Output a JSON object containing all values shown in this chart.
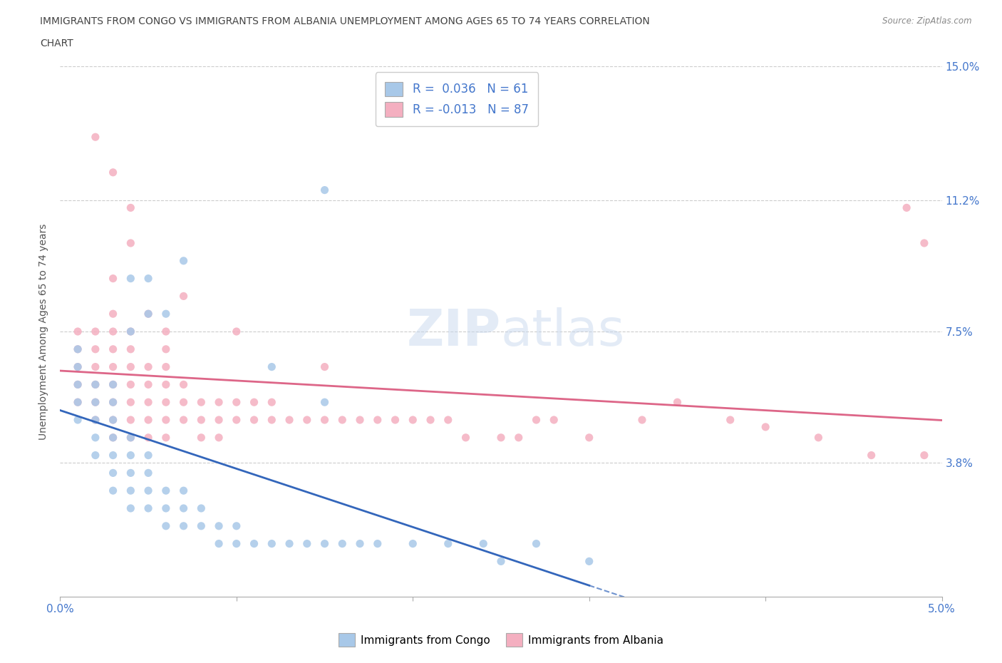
{
  "title_line1": "IMMIGRANTS FROM CONGO VS IMMIGRANTS FROM ALBANIA UNEMPLOYMENT AMONG AGES 65 TO 74 YEARS CORRELATION",
  "title_line2": "CHART",
  "source_text": "Source: ZipAtlas.com",
  "congo_R": 0.036,
  "congo_N": 61,
  "albania_R": -0.013,
  "albania_N": 87,
  "xlim": [
    0.0,
    0.05
  ],
  "ylim": [
    0.0,
    0.15
  ],
  "xtick_positions": [
    0.0,
    0.01,
    0.02,
    0.03,
    0.04,
    0.05
  ],
  "xtick_labels": [
    "0.0%",
    "",
    "",
    "",
    "",
    "5.0%"
  ],
  "ytick_values": [
    0.038,
    0.075,
    0.112,
    0.15
  ],
  "ytick_labels": [
    "3.8%",
    "7.5%",
    "11.2%",
    "15.0%"
  ],
  "ylabel": "Unemployment Among Ages 65 to 74 years",
  "congo_color": "#a8c8e8",
  "albania_color": "#f4afc0",
  "congo_line_color": "#3366bb",
  "albania_line_color": "#dd6688",
  "watermark_color": "#d0dff0",
  "congo_x": [
    0.001,
    0.001,
    0.001,
    0.001,
    0.001,
    0.002,
    0.002,
    0.002,
    0.002,
    0.002,
    0.003,
    0.003,
    0.003,
    0.003,
    0.003,
    0.003,
    0.003,
    0.004,
    0.004,
    0.004,
    0.004,
    0.004,
    0.004,
    0.005,
    0.005,
    0.005,
    0.005,
    0.005,
    0.005,
    0.006,
    0.006,
    0.006,
    0.007,
    0.007,
    0.007,
    0.008,
    0.008,
    0.009,
    0.009,
    0.01,
    0.01,
    0.011,
    0.012,
    0.013,
    0.014,
    0.015,
    0.016,
    0.017,
    0.018,
    0.02,
    0.022,
    0.024,
    0.025,
    0.027,
    0.03,
    0.012,
    0.015,
    0.007,
    0.004,
    0.006,
    0.015
  ],
  "congo_y": [
    0.05,
    0.055,
    0.06,
    0.065,
    0.07,
    0.04,
    0.045,
    0.05,
    0.055,
    0.06,
    0.03,
    0.035,
    0.04,
    0.045,
    0.05,
    0.055,
    0.06,
    0.025,
    0.03,
    0.035,
    0.04,
    0.045,
    0.075,
    0.025,
    0.03,
    0.035,
    0.04,
    0.08,
    0.09,
    0.02,
    0.025,
    0.03,
    0.02,
    0.025,
    0.03,
    0.02,
    0.025,
    0.015,
    0.02,
    0.015,
    0.02,
    0.015,
    0.015,
    0.015,
    0.015,
    0.015,
    0.015,
    0.015,
    0.015,
    0.015,
    0.015,
    0.015,
    0.01,
    0.015,
    0.01,
    0.065,
    0.055,
    0.095,
    0.09,
    0.08,
    0.115
  ],
  "albania_x": [
    0.001,
    0.001,
    0.001,
    0.001,
    0.001,
    0.002,
    0.002,
    0.002,
    0.002,
    0.002,
    0.002,
    0.003,
    0.003,
    0.003,
    0.003,
    0.003,
    0.003,
    0.003,
    0.003,
    0.004,
    0.004,
    0.004,
    0.004,
    0.004,
    0.004,
    0.004,
    0.005,
    0.005,
    0.005,
    0.005,
    0.005,
    0.006,
    0.006,
    0.006,
    0.006,
    0.006,
    0.006,
    0.007,
    0.007,
    0.007,
    0.008,
    0.008,
    0.008,
    0.009,
    0.009,
    0.009,
    0.01,
    0.01,
    0.011,
    0.011,
    0.012,
    0.012,
    0.013,
    0.014,
    0.015,
    0.016,
    0.017,
    0.018,
    0.019,
    0.02,
    0.021,
    0.022,
    0.023,
    0.025,
    0.026,
    0.027,
    0.028,
    0.03,
    0.033,
    0.035,
    0.038,
    0.04,
    0.043,
    0.046,
    0.049,
    0.003,
    0.004,
    0.005,
    0.006,
    0.007,
    0.002,
    0.003,
    0.004,
    0.01,
    0.015,
    0.048,
    0.049
  ],
  "albania_y": [
    0.06,
    0.055,
    0.065,
    0.07,
    0.075,
    0.05,
    0.055,
    0.06,
    0.065,
    0.07,
    0.075,
    0.045,
    0.05,
    0.055,
    0.06,
    0.065,
    0.07,
    0.075,
    0.08,
    0.045,
    0.05,
    0.055,
    0.06,
    0.065,
    0.07,
    0.075,
    0.045,
    0.05,
    0.055,
    0.06,
    0.065,
    0.045,
    0.05,
    0.055,
    0.06,
    0.065,
    0.07,
    0.05,
    0.055,
    0.06,
    0.045,
    0.05,
    0.055,
    0.045,
    0.05,
    0.055,
    0.05,
    0.055,
    0.05,
    0.055,
    0.05,
    0.055,
    0.05,
    0.05,
    0.05,
    0.05,
    0.05,
    0.05,
    0.05,
    0.05,
    0.05,
    0.05,
    0.045,
    0.045,
    0.045,
    0.05,
    0.05,
    0.045,
    0.05,
    0.055,
    0.05,
    0.048,
    0.045,
    0.04,
    0.04,
    0.09,
    0.1,
    0.08,
    0.075,
    0.085,
    0.13,
    0.12,
    0.11,
    0.075,
    0.065,
    0.11,
    0.1
  ]
}
